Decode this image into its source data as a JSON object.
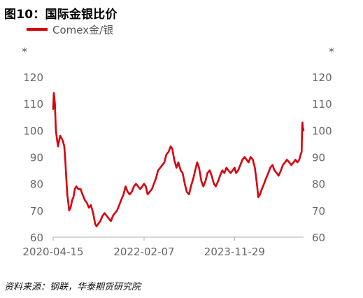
{
  "title": "图10：国际金银比价",
  "source": "资料来源：钢联，华泰期货研究院",
  "chart_data": {
    "type": "line",
    "series": [
      {
        "name": "Comex金/银",
        "color": "#d7000f",
        "points": [
          [
            "2020-04-15",
            108
          ],
          [
            "2020-04-20",
            114
          ],
          [
            "2020-04-28",
            110
          ],
          [
            "2020-05-05",
            100
          ],
          [
            "2020-05-12",
            97
          ],
          [
            "2020-05-20",
            94
          ],
          [
            "2020-05-28",
            96
          ],
          [
            "2020-06-05",
            98
          ],
          [
            "2020-06-15",
            97
          ],
          [
            "2020-06-25",
            96
          ],
          [
            "2020-07-05",
            94
          ],
          [
            "2020-07-12",
            89
          ],
          [
            "2020-07-20",
            82
          ],
          [
            "2020-07-27",
            76
          ],
          [
            "2020-08-03",
            73
          ],
          [
            "2020-08-10",
            70
          ],
          [
            "2020-08-20",
            71
          ],
          [
            "2020-09-01",
            74
          ],
          [
            "2020-09-10",
            75
          ],
          [
            "2020-09-20",
            78
          ],
          [
            "2020-10-01",
            79
          ],
          [
            "2020-10-15",
            78
          ],
          [
            "2020-11-01",
            78
          ],
          [
            "2020-11-15",
            76
          ],
          [
            "2020-12-01",
            74
          ],
          [
            "2020-12-15",
            73
          ],
          [
            "2021-01-01",
            71
          ],
          [
            "2021-01-15",
            72
          ],
          [
            "2021-02-01",
            69
          ],
          [
            "2021-02-15",
            65
          ],
          [
            "2021-02-25",
            64
          ],
          [
            "2021-03-10",
            65
          ],
          [
            "2021-03-25",
            66
          ],
          [
            "2021-04-10",
            68
          ],
          [
            "2021-04-25",
            69
          ],
          [
            "2021-05-10",
            68
          ],
          [
            "2021-05-25",
            67
          ],
          [
            "2021-06-10",
            66
          ],
          [
            "2021-06-25",
            68
          ],
          [
            "2021-07-10",
            69
          ],
          [
            "2021-07-25",
            70
          ],
          [
            "2021-08-10",
            72
          ],
          [
            "2021-08-25",
            74
          ],
          [
            "2021-09-10",
            76
          ],
          [
            "2021-09-25",
            79
          ],
          [
            "2021-10-10",
            77
          ],
          [
            "2021-10-25",
            76
          ],
          [
            "2021-11-10",
            77
          ],
          [
            "2021-11-25",
            79
          ],
          [
            "2021-12-10",
            80
          ],
          [
            "2021-12-25",
            79
          ],
          [
            "2022-01-10",
            78
          ],
          [
            "2022-01-25",
            79
          ],
          [
            "2022-02-07",
            80
          ],
          [
            "2022-02-20",
            79
          ],
          [
            "2022-03-05",
            76
          ],
          [
            "2022-03-20",
            77
          ],
          [
            "2022-04-05",
            78
          ],
          [
            "2022-04-20",
            80
          ],
          [
            "2022-05-05",
            82
          ],
          [
            "2022-05-20",
            85
          ],
          [
            "2022-06-05",
            86
          ],
          [
            "2022-06-20",
            87
          ],
          [
            "2022-07-05",
            88
          ],
          [
            "2022-07-20",
            91
          ],
          [
            "2022-08-05",
            92
          ],
          [
            "2022-08-20",
            94
          ],
          [
            "2022-09-01",
            93
          ],
          [
            "2022-09-15",
            89
          ],
          [
            "2022-10-01",
            86
          ],
          [
            "2022-10-15",
            88
          ],
          [
            "2022-11-01",
            85
          ],
          [
            "2022-11-15",
            84
          ],
          [
            "2022-12-01",
            80
          ],
          [
            "2022-12-15",
            77
          ],
          [
            "2023-01-01",
            76
          ],
          [
            "2023-01-15",
            79
          ],
          [
            "2023-02-01",
            82
          ],
          [
            "2023-02-15",
            85
          ],
          [
            "2023-03-01",
            88
          ],
          [
            "2023-03-15",
            86
          ],
          [
            "2023-04-01",
            81
          ],
          [
            "2023-04-15",
            79
          ],
          [
            "2023-05-01",
            81
          ],
          [
            "2023-05-15",
            84
          ],
          [
            "2023-06-01",
            85
          ],
          [
            "2023-06-15",
            83
          ],
          [
            "2023-07-01",
            80
          ],
          [
            "2023-07-15",
            79
          ],
          [
            "2023-08-01",
            81
          ],
          [
            "2023-08-15",
            83
          ],
          [
            "2023-09-01",
            85
          ],
          [
            "2023-09-15",
            84
          ],
          [
            "2023-10-01",
            86
          ],
          [
            "2023-10-15",
            85
          ],
          [
            "2023-11-01",
            84
          ],
          [
            "2023-11-15",
            85
          ],
          [
            "2023-11-29",
            86
          ],
          [
            "2023-12-10",
            84
          ],
          [
            "2023-12-25",
            85
          ],
          [
            "2024-01-10",
            87
          ],
          [
            "2024-01-25",
            89
          ],
          [
            "2024-02-10",
            90
          ],
          [
            "2024-02-25",
            89
          ],
          [
            "2024-03-10",
            88
          ],
          [
            "2024-03-25",
            90
          ],
          [
            "2024-04-10",
            89
          ],
          [
            "2024-04-25",
            86
          ],
          [
            "2024-05-10",
            80
          ],
          [
            "2024-05-20",
            75
          ],
          [
            "2024-06-01",
            76
          ],
          [
            "2024-06-15",
            78
          ],
          [
            "2024-07-01",
            80
          ],
          [
            "2024-07-15",
            82
          ],
          [
            "2024-08-01",
            84
          ],
          [
            "2024-08-15",
            86
          ],
          [
            "2024-09-01",
            87
          ],
          [
            "2024-09-15",
            85
          ],
          [
            "2024-10-01",
            84
          ],
          [
            "2024-10-15",
            83
          ],
          [
            "2024-11-01",
            85
          ],
          [
            "2024-11-15",
            87
          ],
          [
            "2024-12-01",
            88
          ],
          [
            "2024-12-15",
            89
          ],
          [
            "2025-01-01",
            88
          ],
          [
            "2025-01-15",
            87
          ],
          [
            "2025-02-01",
            88
          ],
          [
            "2025-02-15",
            89
          ],
          [
            "2025-03-01",
            88
          ],
          [
            "2025-03-15",
            89
          ],
          [
            "2025-03-25",
            91
          ],
          [
            "2025-04-01",
            92
          ],
          [
            "2025-04-04",
            99
          ],
          [
            "2025-04-07",
            103
          ],
          [
            "2025-04-10",
            101
          ],
          [
            "2025-04-15",
            100
          ]
        ]
      }
    ],
    "x_ticks": [
      "2020-04-15",
      "2022-02-07",
      "2023-11-29"
    ],
    "xlim": [
      "2020-04-15",
      "2025-04-15"
    ],
    "y_left": {
      "ticks": [
        "60",
        "70",
        "80",
        "90",
        "100",
        "110",
        "120"
      ],
      "ylim": [
        60,
        120
      ],
      "label": "*"
    },
    "y_right": {
      "ticks": [
        "60",
        "70",
        "80",
        "90",
        "100",
        "110",
        "120"
      ],
      "ylim": [
        60,
        120
      ],
      "label": "*"
    },
    "grid": false,
    "legend_position": "top-left"
  }
}
